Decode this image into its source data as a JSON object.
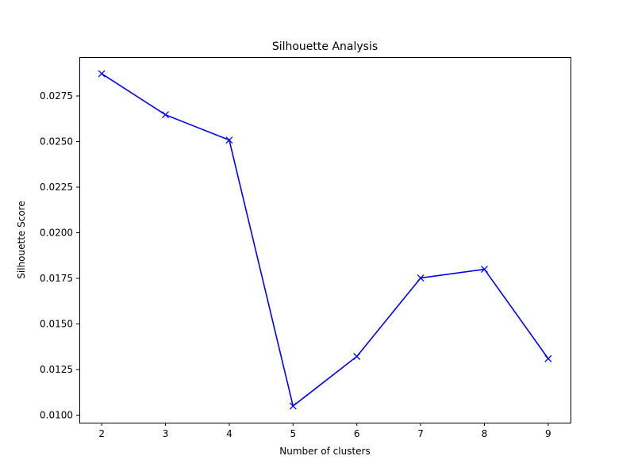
{
  "chart_data": {
    "type": "line",
    "title": "Silhouette Analysis",
    "xlabel": "Number of clusters",
    "ylabel": "Silhouette Score",
    "x": [
      2,
      3,
      4,
      5,
      6,
      7,
      8,
      9
    ],
    "series": [
      {
        "values": [
          0.02872,
          0.02647,
          0.02508,
          0.0105,
          0.01322,
          0.01752,
          0.018,
          0.0131
        ],
        "color": "#0000ff",
        "marker": "x"
      }
    ],
    "xticks": [
      "2",
      "3",
      "4",
      "5",
      "6",
      "7",
      "8",
      "9"
    ],
    "yticks": [
      {
        "value": 0.01,
        "label": "0.0100"
      },
      {
        "value": 0.0125,
        "label": "0.0125"
      },
      {
        "value": 0.015,
        "label": "0.0150"
      },
      {
        "value": 0.0175,
        "label": "0.0175"
      },
      {
        "value": 0.02,
        "label": "0.0200"
      },
      {
        "value": 0.0225,
        "label": "0.0225"
      },
      {
        "value": 0.025,
        "label": "0.0250"
      },
      {
        "value": 0.0275,
        "label": "0.0275"
      }
    ],
    "xlim": [
      1.65,
      9.35
    ],
    "ylim": [
      0.009589,
      0.029631
    ],
    "grid": false,
    "legend": "none"
  }
}
